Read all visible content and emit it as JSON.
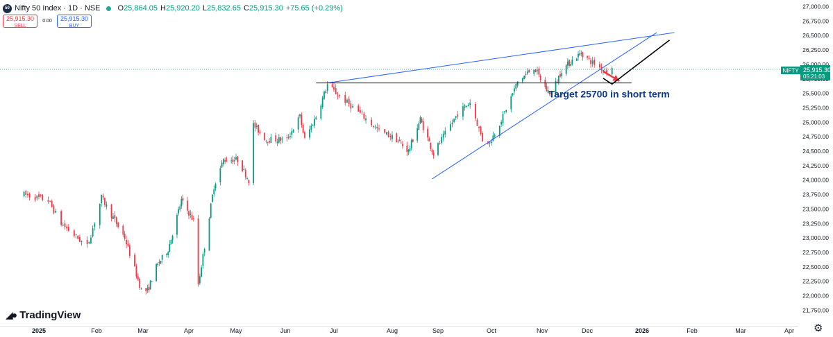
{
  "legend": {
    "symbol_badge": "50",
    "title": "Nifty 50 Index · 1D · NSE",
    "open_label": "O",
    "open": "25,864.05",
    "high_label": "H",
    "high": "25,920.20",
    "low_label": "L",
    "low": "25,832.65",
    "close_label": "C",
    "close": "25,915.30",
    "change": "+75.65 (+0.29%)"
  },
  "trade": {
    "sell_price": "25,915.30",
    "sell_label": "SELL",
    "spread": "0.00",
    "buy_price": "25,915.30",
    "buy_label": "BUY"
  },
  "price_tag": {
    "symbol": "NIFTY",
    "price": "25,915.30",
    "countdown": "05:21:03"
  },
  "branding": {
    "name": "TradingView"
  },
  "icons": {
    "settings": "gear-icon",
    "logo": "tradingview-logo-icon"
  },
  "colors": {
    "up": "#089981",
    "down": "#f23645",
    "trendline": "#2962ff",
    "annotation": "#0d3a8c"
  },
  "chart_data": {
    "type": "candlestick",
    "symbol": "Nifty 50 Index",
    "interval": "1D",
    "exchange": "NSE",
    "ylim": [
      21650,
      27000
    ],
    "y_ticks": [
      "27,000.00",
      "26,750.00",
      "26,500.00",
      "26,250.00",
      "26,000.00",
      "25,750.00",
      "25,500.00",
      "25,250.00",
      "25,000.00",
      "24,750.00",
      "24,500.00",
      "24,250.00",
      "24,000.00",
      "23,750.00",
      "23,500.00",
      "23,250.00",
      "23,000.00",
      "22,750.00",
      "22,500.00",
      "22,250.00",
      "22,000.00",
      "21,750.00"
    ],
    "y_tick_values": [
      27000,
      26750,
      26500,
      26250,
      26000,
      25750,
      25500,
      25250,
      25000,
      24750,
      24500,
      24250,
      24000,
      23750,
      23500,
      23250,
      23000,
      22750,
      22500,
      22250,
      22000,
      21750
    ],
    "x_ticks": [
      "2025",
      "Feb",
      "Mar",
      "Apr",
      "May",
      "Jun",
      "Jul",
      "Aug",
      "Sep",
      "Oct",
      "Nov",
      "Dec",
      "2026",
      "Feb",
      "Mar",
      "Apr"
    ],
    "x_tick_dates": [
      "2025-01-01",
      "2025-02-01",
      "2025-03-01",
      "2025-04-01",
      "2025-05-01",
      "2025-06-01",
      "2025-07-01",
      "2025-08-01",
      "2025-09-01",
      "2025-10-01",
      "2025-11-01",
      "2025-12-01",
      "2026-01-01",
      "2026-02-01",
      "2026-03-01",
      "2026-04-01"
    ],
    "x_tick_bold": [
      true,
      false,
      false,
      false,
      false,
      false,
      false,
      false,
      false,
      false,
      false,
      false,
      true,
      false,
      false,
      false
    ],
    "close_path": [
      [
        "2024-12-24",
        23750
      ],
      [
        "2025-01-06",
        23650
      ],
      [
        "2025-01-13",
        23250
      ],
      [
        "2025-01-27",
        22850
      ],
      [
        "2025-02-04",
        23700
      ],
      [
        "2025-02-10",
        23400
      ],
      [
        "2025-02-18",
        23000
      ],
      [
        "2025-02-28",
        22100
      ],
      [
        "2025-03-04",
        22080
      ],
      [
        "2025-03-10",
        22500
      ],
      [
        "2025-03-18",
        22800
      ],
      [
        "2025-03-27",
        23650
      ],
      [
        "2025-04-04",
        23300
      ],
      [
        "2025-04-07",
        22200
      ],
      [
        "2025-04-11",
        22850
      ],
      [
        "2025-04-17",
        23900
      ],
      [
        "2025-04-23",
        24350
      ],
      [
        "2025-05-02",
        24350
      ],
      [
        "2025-05-09",
        24000
      ],
      [
        "2025-05-12",
        24950
      ],
      [
        "2025-05-20",
        24700
      ],
      [
        "2025-06-02",
        24700
      ],
      [
        "2025-06-10",
        25100
      ],
      [
        "2025-06-13",
        24700
      ],
      [
        "2025-06-20",
        25100
      ],
      [
        "2025-06-27",
        25650
      ],
      [
        "2025-07-04",
        25450
      ],
      [
        "2025-07-15",
        25150
      ],
      [
        "2025-07-25",
        24850
      ],
      [
        "2025-08-04",
        24700
      ],
      [
        "2025-08-12",
        24500
      ],
      [
        "2025-08-20",
        25050
      ],
      [
        "2025-08-29",
        24450
      ],
      [
        "2025-09-03",
        24700
      ],
      [
        "2025-09-12",
        25150
      ],
      [
        "2025-09-19",
        25350
      ],
      [
        "2025-09-26",
        24700
      ],
      [
        "2025-09-30",
        24650
      ],
      [
        "2025-10-08",
        25100
      ],
      [
        "2025-10-17",
        25700
      ],
      [
        "2025-10-27",
        25950
      ],
      [
        "2025-11-04",
        25550
      ],
      [
        "2025-11-07",
        25500
      ],
      [
        "2025-11-14",
        25900
      ],
      [
        "2025-11-20",
        26050
      ],
      [
        "2025-11-27",
        26200
      ],
      [
        "2025-12-03",
        26050
      ],
      [
        "2025-12-08",
        25950
      ],
      [
        "2025-12-11",
        25900
      ],
      [
        "2025-12-15",
        25915
      ]
    ],
    "price_line": 25915.3,
    "trendlines": [
      {
        "name": "upper",
        "from": [
          "2025-06-27",
          25680
        ],
        "to": [
          "2026-01-21",
          26550
        ]
      },
      {
        "name": "lower",
        "from": [
          "2025-08-28",
          24020
        ],
        "to": [
          "2026-01-10",
          26550
        ]
      },
      {
        "name": "support",
        "from": [
          "2025-06-20",
          25680
        ],
        "to": [
          "2025-12-26",
          25680
        ]
      }
    ],
    "annotations": [
      {
        "type": "text",
        "text": "Target 25700 in short term",
        "at": [
          "2025-10-31",
          25480
        ]
      },
      {
        "type": "arrow",
        "color": "#f23645",
        "from": [
          "2025-12-10",
          25880
        ],
        "to": [
          "2025-12-16",
          25750
        ]
      },
      {
        "type": "path",
        "color": "#000000",
        "points": [
          [
            "2025-12-10",
            25760
          ],
          [
            "2025-12-15",
            25660
          ],
          [
            "2026-01-18",
            26420
          ]
        ]
      }
    ],
    "grid": false
  }
}
